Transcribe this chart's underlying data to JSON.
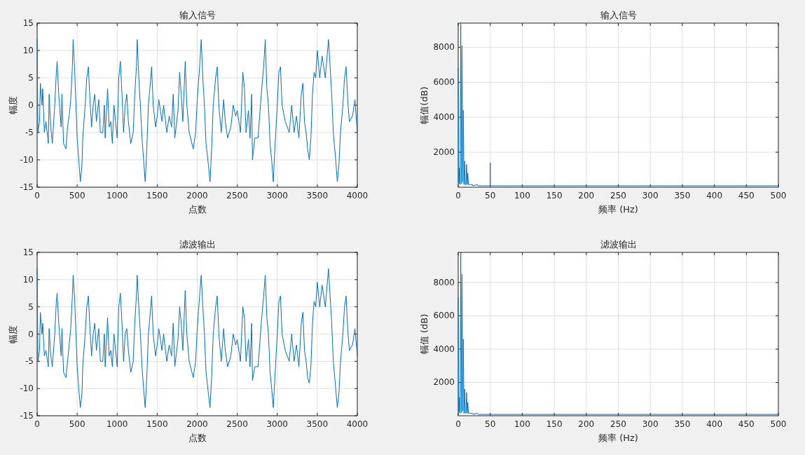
{
  "chart_data": [
    {
      "type": "line",
      "title": "输入信号",
      "xlabel": "点数",
      "ylabel": "幅度",
      "xlim": [
        0,
        4000
      ],
      "ylim": [
        -15,
        15
      ],
      "xticks": [
        0,
        500,
        1000,
        1500,
        2000,
        2500,
        3000,
        3500,
        4000
      ],
      "yticks": [
        -15,
        -10,
        -5,
        0,
        5,
        10,
        15
      ],
      "grid": true,
      "x": [
        0,
        10,
        30,
        40,
        60,
        70,
        90,
        110,
        140,
        150,
        170,
        190,
        220,
        240,
        250,
        270,
        300,
        310,
        330,
        360,
        380,
        400,
        420,
        440,
        450,
        470,
        480,
        500,
        520,
        540,
        560,
        570,
        600,
        620,
        640,
        660,
        680,
        700,
        720,
        740,
        770,
        790,
        820,
        840,
        850,
        880,
        900,
        920,
        940,
        960,
        1000,
        1020,
        1040,
        1060,
        1080,
        1100,
        1120,
        1140,
        1170,
        1200,
        1220,
        1240,
        1250,
        1270,
        1290,
        1310,
        1330,
        1350,
        1370,
        1390,
        1420,
        1430,
        1450,
        1480,
        1500,
        1520,
        1560,
        1580,
        1620,
        1650,
        1680,
        1700,
        1720,
        1760,
        1780,
        1800,
        1820,
        1850,
        1870,
        1900,
        1950,
        1980,
        2000,
        2030,
        2050,
        2070,
        2090,
        2110,
        2140,
        2160,
        2180,
        2200,
        2230,
        2250,
        2270,
        2300,
        2330,
        2350,
        2380,
        2420,
        2450,
        2480,
        2500,
        2540,
        2570,
        2590,
        2610,
        2640,
        2660,
        2680,
        2690,
        2720,
        2760,
        2800,
        2830,
        2850,
        2870,
        2890,
        2910,
        2930,
        2950,
        2970,
        3000,
        3020,
        3040,
        3060,
        3100,
        3150,
        3180,
        3210,
        3240,
        3270,
        3300,
        3320,
        3340,
        3360,
        3380,
        3400,
        3420,
        3440,
        3460,
        3480,
        3500,
        3530,
        3560,
        3600,
        3640,
        3660,
        3680,
        3700,
        3730,
        3750,
        3770,
        3790,
        3820,
        3840,
        3860,
        3880,
        3900,
        3940,
        3970,
        4000
      ],
      "series": [
        {
          "color": "#0072bd",
          "values": [
            12,
            -5,
            -3,
            4,
            0,
            3,
            -5,
            -3,
            -7,
            2,
            -4,
            -7,
            0,
            6,
            8,
            2,
            -4,
            2,
            -7,
            -8,
            -4,
            -2,
            1,
            7,
            12,
            6,
            2,
            -6,
            -10,
            -14,
            -11,
            -6,
            0,
            5,
            7,
            1,
            -4,
            0,
            2,
            -3,
            1,
            -5,
            -5,
            0,
            -6,
            3,
            -4,
            -3,
            -7,
            0,
            -6,
            5,
            8,
            2,
            -5,
            0,
            2,
            -3,
            -7,
            -5,
            2,
            7,
            12,
            5,
            0,
            -6,
            -10,
            -14,
            -8,
            0,
            5,
            7,
            0,
            -4,
            -2,
            1,
            -3,
            0,
            -5,
            -2,
            -4,
            2,
            -6,
            -1,
            6,
            2,
            -3,
            8,
            0,
            -5,
            -8,
            -5,
            1,
            7,
            12,
            5,
            0,
            -7,
            -11,
            -14,
            -8,
            0,
            5,
            7,
            0,
            -5,
            1,
            -3,
            -6,
            -4,
            0,
            -2,
            -1,
            -5,
            6,
            3,
            -5,
            -1,
            -6,
            2,
            -10,
            -6,
            -6,
            2,
            7,
            12,
            3,
            0,
            -7,
            -10,
            -14,
            -8,
            0,
            6,
            7,
            0,
            -3,
            -5,
            0,
            -5,
            -2,
            -6,
            2,
            4,
            -3,
            -5,
            -8,
            -10,
            -6,
            2,
            6,
            5,
            10,
            5,
            9,
            5,
            12,
            7,
            2,
            -5,
            -10,
            -14,
            -11,
            -5,
            0,
            5,
            7,
            1,
            -3,
            -2,
            1,
            -5
          ]
        }
      ]
    },
    {
      "type": "line",
      "title": "输入信号",
      "xlabel": "频率 (Hz)",
      "ylabel": "幅值(dB)",
      "xlim": [
        0,
        500
      ],
      "ylim": [
        0,
        9380
      ],
      "xticks": [
        0,
        50,
        100,
        150,
        200,
        250,
        300,
        350,
        400,
        450,
        500
      ],
      "yticks": [
        2000,
        4000,
        6000,
        8000
      ],
      "grid": true,
      "x": [
        0,
        1,
        2,
        3,
        4,
        5,
        6,
        7,
        8,
        9,
        10,
        11,
        12,
        13,
        14,
        15,
        16,
        18,
        22,
        23,
        30,
        31,
        49.8,
        50,
        50.2,
        100,
        150,
        200,
        250,
        300,
        350,
        400,
        450,
        500
      ],
      "series": [
        {
          "color": "#0072bd",
          "values": [
            6800,
            200,
            1100,
            150,
            9380,
            200,
            8100,
            300,
            4400,
            150,
            1500,
            150,
            150,
            1300,
            150,
            800,
            150,
            150,
            150,
            80,
            150,
            80,
            80,
            1400,
            80,
            80,
            80,
            80,
            80,
            80,
            80,
            80,
            80,
            80
          ]
        }
      ]
    },
    {
      "type": "line",
      "title": "滤波输出",
      "xlabel": "点数",
      "ylabel": "幅度",
      "xlim": [
        0,
        4000
      ],
      "ylim": [
        -15,
        15
      ],
      "xticks": [
        0,
        500,
        1000,
        1500,
        2000,
        2500,
        3000,
        3500,
        4000
      ],
      "yticks": [
        -15,
        -10,
        -5,
        0,
        5,
        10,
        15
      ],
      "grid": true,
      "x": [
        0,
        10,
        30,
        40,
        60,
        70,
        90,
        110,
        140,
        150,
        170,
        190,
        220,
        240,
        250,
        270,
        300,
        310,
        330,
        360,
        380,
        400,
        420,
        440,
        450,
        470,
        480,
        500,
        520,
        540,
        560,
        570,
        600,
        620,
        640,
        660,
        680,
        700,
        720,
        740,
        770,
        790,
        820,
        840,
        850,
        880,
        900,
        920,
        940,
        960,
        1000,
        1020,
        1040,
        1060,
        1080,
        1100,
        1120,
        1140,
        1170,
        1200,
        1220,
        1240,
        1250,
        1270,
        1290,
        1310,
        1330,
        1350,
        1370,
        1390,
        1420,
        1430,
        1450,
        1480,
        1500,
        1520,
        1560,
        1580,
        1620,
        1650,
        1680,
        1700,
        1720,
        1760,
        1780,
        1800,
        1820,
        1850,
        1870,
        1900,
        1950,
        1980,
        2000,
        2030,
        2050,
        2070,
        2090,
        2110,
        2140,
        2160,
        2180,
        2200,
        2230,
        2250,
        2270,
        2300,
        2330,
        2350,
        2380,
        2420,
        2450,
        2480,
        2500,
        2540,
        2570,
        2590,
        2610,
        2640,
        2660,
        2680,
        2690,
        2720,
        2760,
        2800,
        2830,
        2850,
        2870,
        2890,
        2910,
        2930,
        2950,
        2970,
        3000,
        3020,
        3040,
        3060,
        3100,
        3150,
        3180,
        3210,
        3240,
        3270,
        3300,
        3320,
        3340,
        3360,
        3380,
        3400,
        3420,
        3440,
        3460,
        3480,
        3500,
        3530,
        3560,
        3600,
        3640,
        3660,
        3680,
        3700,
        3730,
        3750,
        3770,
        3790,
        3820,
        3840,
        3860,
        3880,
        3900,
        3940,
        3970,
        4000
      ],
      "series": [
        {
          "color": "#0072bd",
          "values": [
            12,
            -5,
            -3,
            4,
            0,
            2,
            -4,
            -3,
            -6,
            1,
            -4,
            -6,
            0,
            6,
            7.5,
            2,
            -4,
            1,
            -7,
            -8,
            -5,
            -2,
            1,
            7,
            10.8,
            6,
            2,
            -6,
            -10,
            -13.5,
            -11,
            -6,
            0,
            5,
            7,
            1,
            -4,
            0,
            2,
            -3,
            1,
            -5,
            -5,
            0,
            -6,
            3,
            -4,
            -3,
            -6,
            0,
            -6,
            5,
            7.5,
            2,
            -5,
            0,
            1,
            -3,
            -7,
            -5,
            2,
            7,
            10.8,
            5,
            0,
            -6,
            -10,
            -13.5,
            -8,
            0,
            5,
            7,
            0,
            -4,
            -2,
            1,
            -3,
            0,
            -5,
            -2,
            -4,
            2,
            -6,
            -1,
            5,
            2,
            -3,
            8,
            0,
            -5,
            -8,
            -5,
            1,
            7,
            10.8,
            5,
            0,
            -7,
            -11,
            -13.5,
            -8,
            0,
            5,
            7,
            0,
            -5,
            1,
            -3,
            -6,
            -4,
            0,
            -2,
            -1,
            -5,
            5,
            3,
            -5,
            -1,
            -6,
            2,
            -8.5,
            -6,
            -6,
            2,
            7,
            10.8,
            3,
            0,
            -7,
            -10,
            -13.5,
            -8,
            0,
            6,
            7,
            0,
            -3,
            -5,
            0,
            -5,
            -2,
            -6,
            2,
            4,
            -3,
            -5,
            -8,
            -9,
            -6,
            2,
            6,
            5,
            9.5,
            5,
            9,
            5,
            12,
            7,
            2,
            -5,
            -10,
            -13.5,
            -11,
            -5,
            0,
            5,
            7,
            1,
            -3,
            -2,
            1,
            -4
          ]
        }
      ]
    },
    {
      "type": "line",
      "title": "滤波输出",
      "xlabel": "频率 (Hz)",
      "ylabel": "幅值 (dB)",
      "xlim": [
        0,
        500
      ],
      "ylim": [
        0,
        9810
      ],
      "xticks": [
        0,
        50,
        100,
        150,
        200,
        250,
        300,
        350,
        400,
        450,
        500
      ],
      "yticks": [
        2000,
        4000,
        6000,
        8000
      ],
      "grid": true,
      "x": [
        0,
        1,
        2,
        3,
        4,
        5,
        6,
        7,
        8,
        9,
        10,
        11,
        12,
        13,
        14,
        15,
        16,
        18,
        22,
        23,
        30,
        31,
        50,
        100,
        150,
        200,
        250,
        300,
        350,
        400,
        450,
        500
      ],
      "series": [
        {
          "color": "#0072bd",
          "values": [
            7100,
            200,
            1100,
            150,
            9810,
            200,
            8500,
            300,
            4600,
            150,
            1600,
            150,
            150,
            1400,
            150,
            800,
            150,
            150,
            150,
            80,
            150,
            80,
            80,
            80,
            80,
            80,
            80,
            80,
            80,
            80,
            80,
            80
          ]
        }
      ]
    }
  ]
}
